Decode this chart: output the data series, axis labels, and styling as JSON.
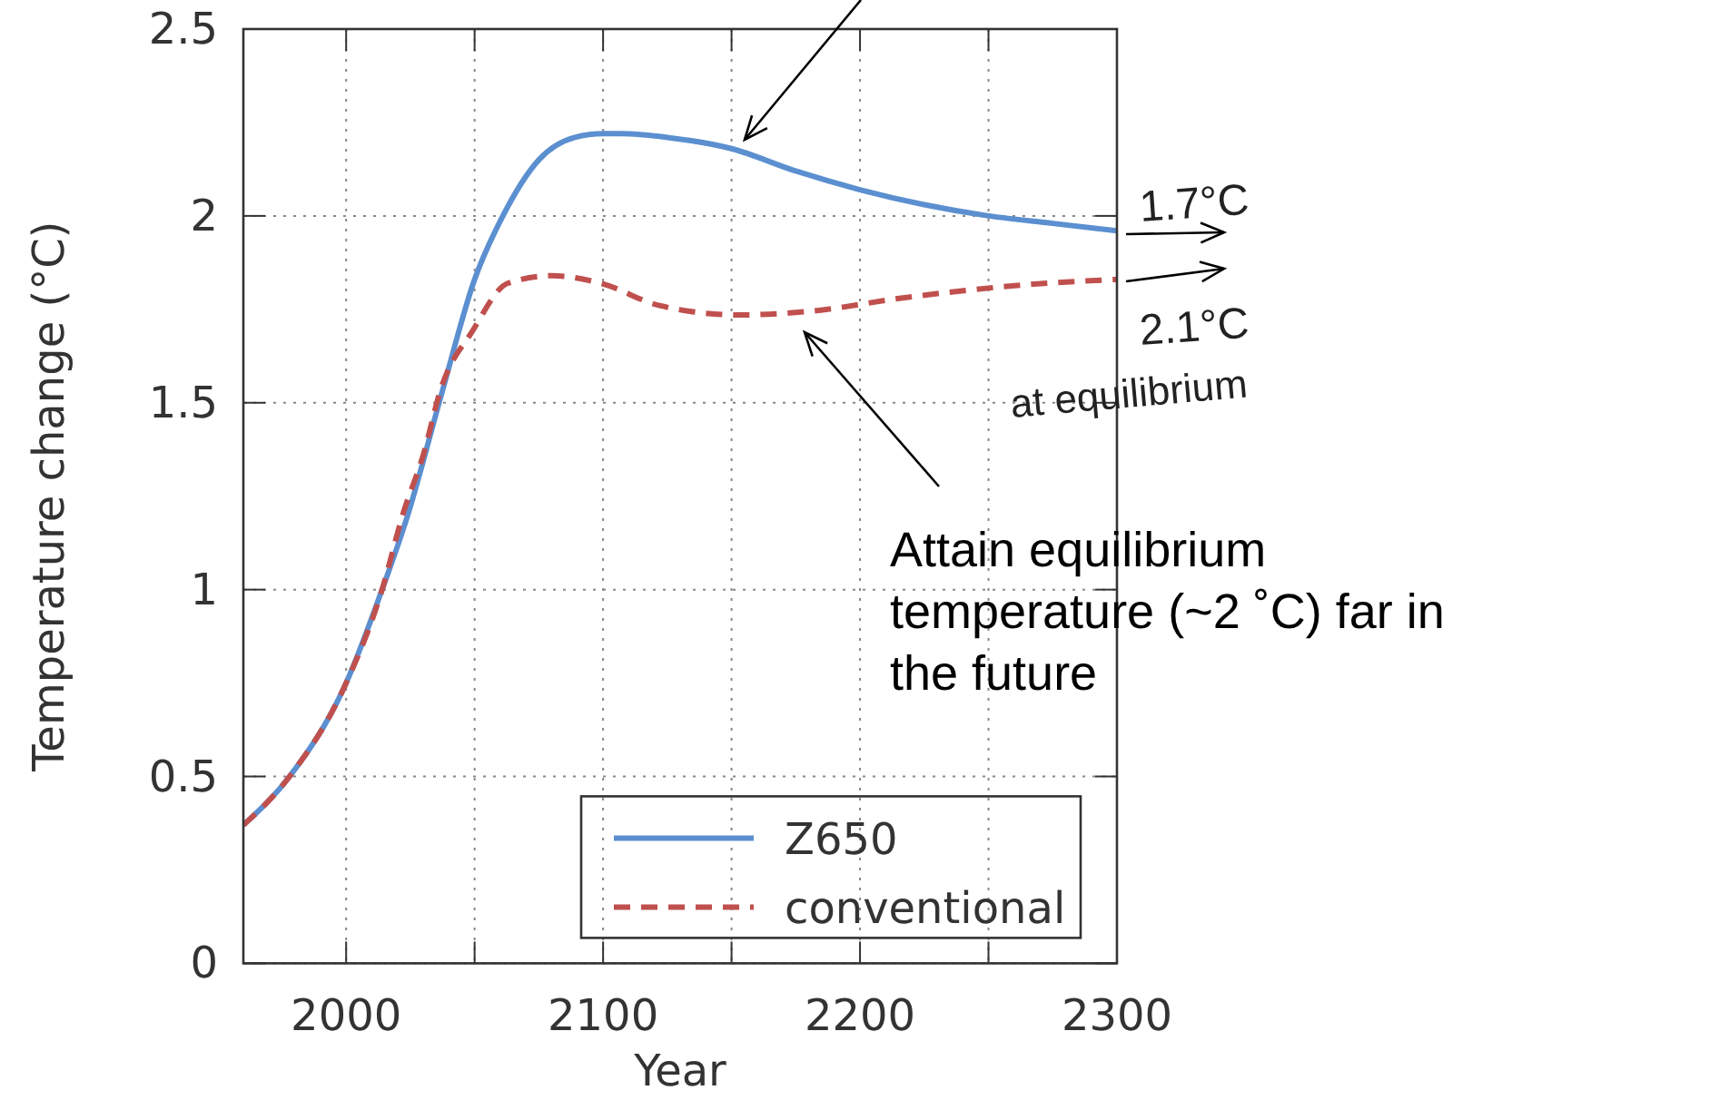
{
  "chart_data": {
    "type": "line",
    "xlabel": "Year",
    "ylabel": "Temperature change (°C)",
    "xlim": [
      1960,
      2300
    ],
    "xticks": [
      2000,
      {
        "value": 2050,
        "label": null
      },
      2100,
      {
        "value": 2150,
        "label": null
      },
      2200,
      {
        "value": 2250,
        "label": null
      },
      2300
    ],
    "ylim": [
      0,
      2.5
    ],
    "yticks": [
      0,
      0.5,
      1,
      1.5,
      2,
      2.5
    ],
    "grid": true,
    "legend": "bottom right",
    "series": [
      {
        "name": "Z650",
        "color": "#5b8fd0",
        "line_style": "solid",
        "x": [
          1960,
          1978,
          2000,
          2014,
          2024,
          2037,
          2050,
          2061,
          2075,
          2089,
          2100,
          2107,
          2125,
          2150,
          2175,
          2200,
          2225,
          2250,
          2275,
          2300
        ],
        "values": [
          0.37,
          0.5,
          0.75,
          1.0,
          1.2,
          1.52,
          1.83,
          2.0,
          2.15,
          2.21,
          2.22,
          2.22,
          2.21,
          2.18,
          2.12,
          2.07,
          2.03,
          2.0,
          1.98,
          1.96
        ]
      },
      {
        "name": "conventional",
        "color": "#c0504d",
        "line_style": "dashed",
        "x": [
          1960,
          1978,
          2000,
          2014,
          2022,
          2030,
          2037,
          2049,
          2063,
          2080,
          2099,
          2122,
          2153,
          2181,
          2216,
          2263,
          2300
        ],
        "values": [
          0.37,
          0.5,
          0.75,
          1.0,
          1.2,
          1.36,
          1.54,
          1.69,
          1.82,
          1.84,
          1.82,
          1.76,
          1.735,
          1.745,
          1.78,
          1.815,
          1.83
        ]
      }
    ],
    "annotations": [
      "1.7°C",
      "2.1°C",
      "at equilibrium",
      "Attain equilibrium temperature (~2 ˚C) far in the future"
    ]
  }
}
